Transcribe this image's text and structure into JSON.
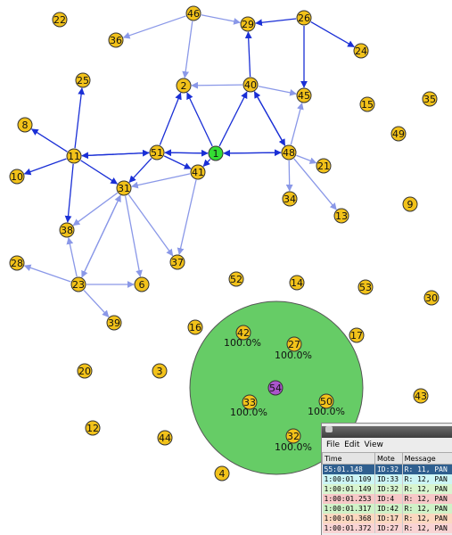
{
  "nodes": [
    {
      "label": "22"
    },
    {
      "label": "46"
    },
    {
      "label": "29"
    },
    {
      "label": "26"
    },
    {
      "label": "24"
    },
    {
      "label": "36"
    },
    {
      "label": "25"
    },
    {
      "label": "2"
    },
    {
      "label": "40"
    },
    {
      "label": "45"
    },
    {
      "label": "15"
    },
    {
      "label": "35"
    },
    {
      "label": "49"
    },
    {
      "label": "8"
    },
    {
      "label": "11"
    },
    {
      "label": "51"
    },
    {
      "label": "1"
    },
    {
      "label": "48"
    },
    {
      "label": "21"
    },
    {
      "label": "10"
    },
    {
      "label": "41"
    },
    {
      "label": "34"
    },
    {
      "label": "9"
    },
    {
      "label": "13"
    },
    {
      "label": "31"
    },
    {
      "label": "38"
    },
    {
      "label": "37"
    },
    {
      "label": "28"
    },
    {
      "label": "23"
    },
    {
      "label": "6"
    },
    {
      "label": "52"
    },
    {
      "label": "14"
    },
    {
      "label": "53"
    },
    {
      "label": "30"
    },
    {
      "label": "39"
    },
    {
      "label": "16"
    },
    {
      "label": "42"
    },
    {
      "label": "17"
    },
    {
      "label": "27"
    },
    {
      "label": "20"
    },
    {
      "label": "3"
    },
    {
      "label": "54"
    },
    {
      "label": "33"
    },
    {
      "label": "50"
    },
    {
      "label": "43"
    },
    {
      "label": "12"
    },
    {
      "label": "44"
    },
    {
      "label": "32"
    },
    {
      "label": "4"
    }
  ],
  "percentages": [
    "100.0%",
    "100.0%",
    "100.0%",
    "100.0%",
    "100.0%"
  ],
  "log": {
    "menu": [
      "File",
      "Edit",
      "View"
    ],
    "columns": [
      "Time",
      "Mote",
      "Message"
    ],
    "rows": [
      [
        "55:01.148",
        "ID:32",
        "R: 11, PAN"
      ],
      [
        "1:00:01.109",
        "ID:33",
        "R: 12, PAN"
      ],
      [
        "1:00:01.149",
        "ID:32",
        "R: 12, PAN"
      ],
      [
        "1:00:01.253",
        "ID:4",
        "R: 12, PAN"
      ],
      [
        "1:00:01.317",
        "ID:42",
        "R: 12, PAN"
      ],
      [
        "1:00:01.368",
        "ID:17",
        "R: 12, PAN"
      ],
      [
        "1:00:01.372",
        "ID:27",
        "R: 12, PAN"
      ]
    ]
  }
}
